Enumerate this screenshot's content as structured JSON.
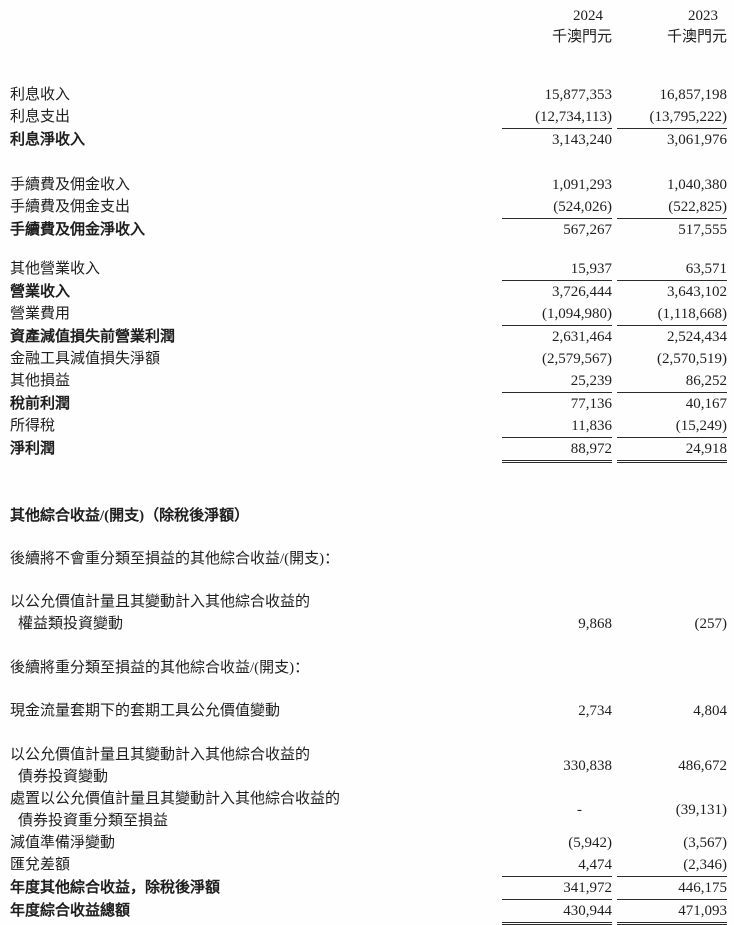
{
  "header": {
    "year_col_1": "2024",
    "year_col_2": "2023",
    "unit_col_1": "千澳門元",
    "unit_col_2": "千澳門元"
  },
  "rows": [
    {
      "type": "item",
      "label": "利息收入",
      "v1": "15,877,353",
      "v2": "16,857,198",
      "mt": 36
    },
    {
      "type": "item",
      "label": "利息支出",
      "v1": "(12,734,113)",
      "v2": "(13,795,222)",
      "ul": "single"
    },
    {
      "type": "item",
      "label": "利息淨收入",
      "v1": "3,143,240",
      "v2": "3,061,976",
      "bold": true
    },
    {
      "type": "item",
      "label": "手續費及佣金收入",
      "v1": "1,091,293",
      "v2": "1,040,380",
      "mt": 23
    },
    {
      "type": "item",
      "label": "手續費及佣金支出",
      "v1": "(524,026)",
      "v2": "(522,825)",
      "ul": "single"
    },
    {
      "type": "item",
      "label": "手續費及佣金淨收入",
      "v1": "567,267",
      "v2": "517,555",
      "bold": true
    },
    {
      "type": "item",
      "label": "其他營業收入",
      "v1": "15,937",
      "v2": "63,571",
      "ul": "single",
      "mt": 17
    },
    {
      "type": "item",
      "label": "營業收入",
      "v1": "3,726,444",
      "v2": "3,643,102",
      "bold": true
    },
    {
      "type": "item",
      "label": "營業費用",
      "v1": "(1,094,980)",
      "v2": "(1,118,668)",
      "ul": "single"
    },
    {
      "type": "item",
      "label": "資產減值損失前營業利潤",
      "v1": "2,631,464",
      "v2": "2,524,434",
      "bold": true
    },
    {
      "type": "item",
      "label": "金融工具減值損失淨額",
      "v1": "(2,579,567)",
      "v2": "(2,570,519)"
    },
    {
      "type": "item",
      "label": "其他損益",
      "v1": "25,239",
      "v2": "86,252",
      "ul": "single"
    },
    {
      "type": "item",
      "label": "稅前利潤",
      "v1": "77,136",
      "v2": "40,167",
      "bold": true
    },
    {
      "type": "item",
      "label": "所得稅",
      "v1": "11,836",
      "v2": "(15,249)",
      "ul": "single"
    },
    {
      "type": "item",
      "label": "淨利潤",
      "v1": "88,972",
      "v2": "24,918",
      "bold": true,
      "ul": "double"
    },
    {
      "type": "section",
      "label": "其他綜合收益/(開支)（除稅後淨額）",
      "bold": true,
      "mt": 42
    },
    {
      "type": "section",
      "label": "後續將不會重分類至損益的其他綜合收益/(開支)：",
      "mt": 21
    },
    {
      "type": "item2",
      "lines": [
        "以公允價值計量且其變動計入其他綜合收益的",
        "權益類投資變動"
      ],
      "v1": "9,868",
      "v2": "(257)",
      "valign": "end",
      "mt": 21
    },
    {
      "type": "section",
      "label": "後續將重分類至損益的其他綜合收益/(開支)：",
      "mt": 22
    },
    {
      "type": "item",
      "label": "現金流量套期下的套期工具公允價值變動",
      "v1": "2,734",
      "v2": "4,804",
      "mt": 21
    },
    {
      "type": "item2",
      "lines": [
        "以公允價值計量且其變動計入其他綜合收益的",
        "債券投資變動"
      ],
      "v1": "330,838",
      "v2": "486,672",
      "valign": "center",
      "mt": 22
    },
    {
      "type": "item2",
      "lines": [
        "處置以公允價值計量且其變動計入其他綜合收益的",
        "債券投資重分類至損益"
      ],
      "v1": "-",
      "v2": "(39,131)",
      "valign": "center"
    },
    {
      "type": "item",
      "label": "減值準備淨變動",
      "v1": "(5,942)",
      "v2": "(3,567)"
    },
    {
      "type": "item",
      "label": "匯兌差額",
      "v1": "4,474",
      "v2": "(2,346)",
      "ul": "single"
    },
    {
      "type": "item",
      "label": "年度其他綜合收益，除稅後淨額",
      "v1": "341,972",
      "v2": "446,175",
      "bold": true,
      "ul": "single"
    },
    {
      "type": "item",
      "label": "年度綜合收益總額",
      "v1": "430,944",
      "v2": "471,093",
      "bold": true,
      "ul": "double"
    }
  ]
}
